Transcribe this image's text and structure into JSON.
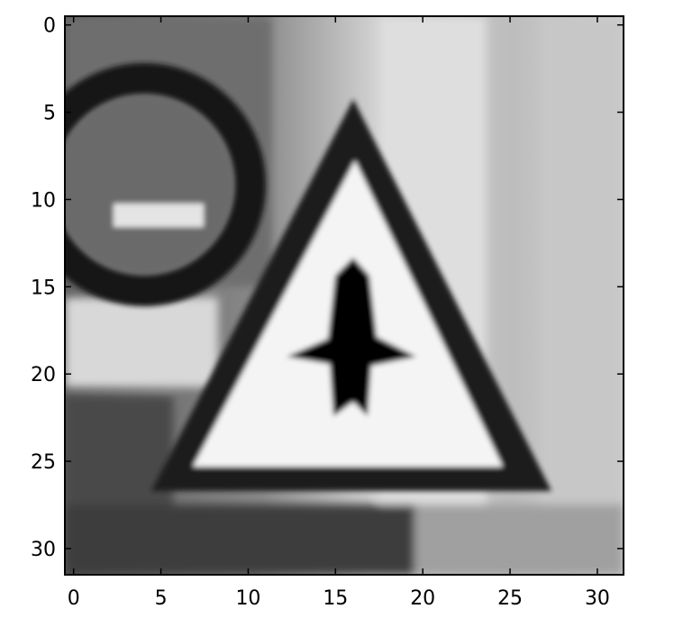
{
  "chart_data": {
    "type": "heatmap",
    "content": "grayscale 32x32 pixel image of a triangular traffic sign with a black upward arrow-shaped symbol; part of a round sign with a white horizontal bar at upper left",
    "colormap": "gray",
    "grid": false,
    "image_size": [
      32,
      32
    ],
    "xlim": [
      -0.5,
      31.5
    ],
    "ylim": [
      31.5,
      -0.5
    ],
    "x_ticks": [
      "0",
      "5",
      "10",
      "15",
      "20",
      "25",
      "30"
    ],
    "y_ticks": [
      "0",
      "5",
      "10",
      "15",
      "20",
      "25",
      "30"
    ],
    "title": "",
    "xlabel": "",
    "ylabel": ""
  }
}
